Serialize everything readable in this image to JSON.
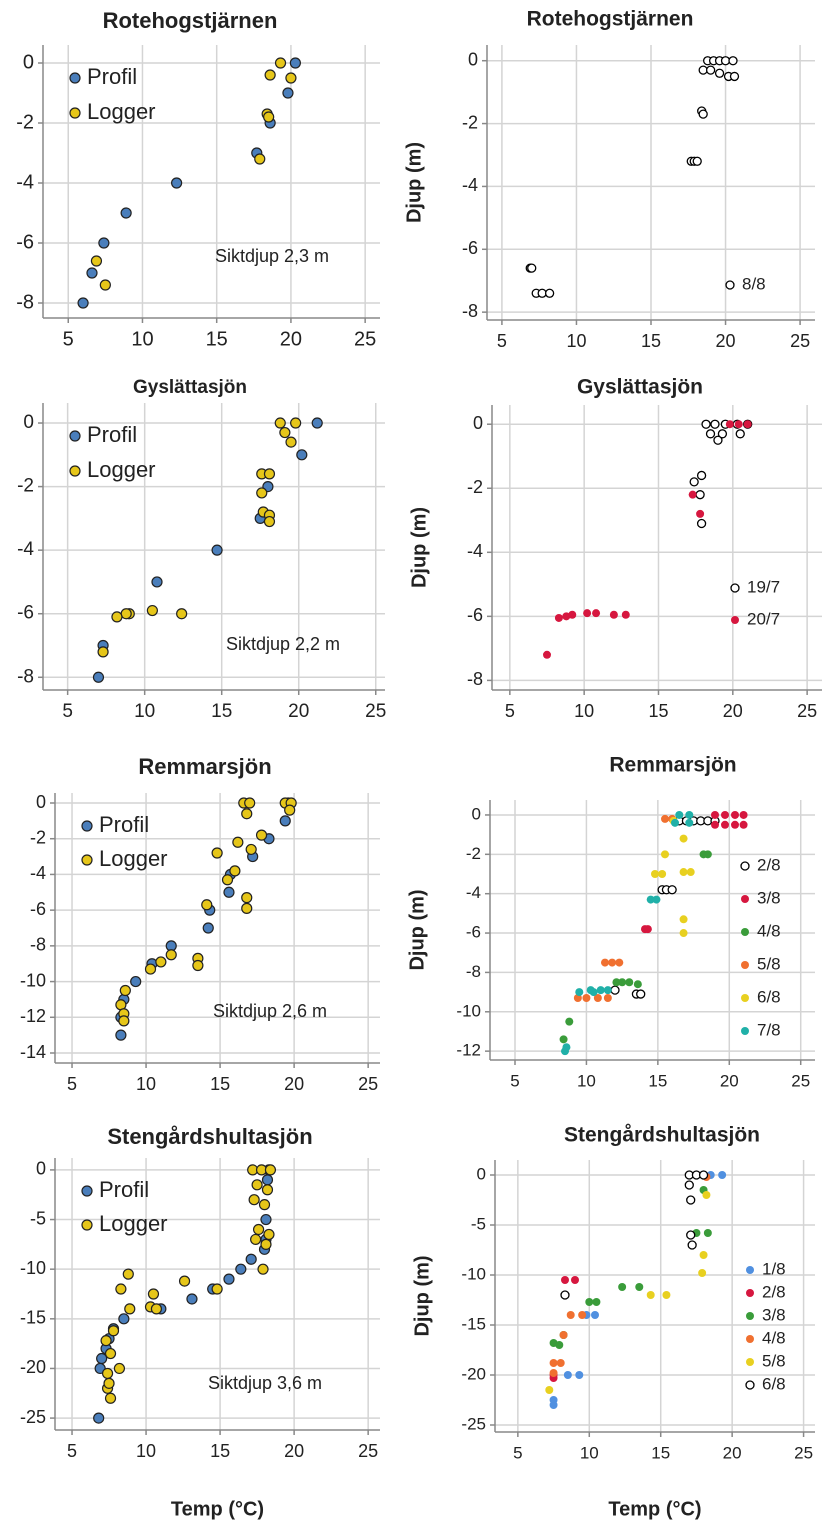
{
  "chart_data": [
    {
      "type": "scatter",
      "title": "Rotehogstjärnen",
      "annotation": "Siktdjup  2,3 m",
      "legend_loc": "upper left",
      "grid": true,
      "xlim": [
        3.3,
        26
      ],
      "ylim": [
        -8.5,
        0.6
      ],
      "xticks": [
        5,
        10,
        15,
        20,
        25
      ],
      "yticks": [
        0,
        -2,
        -4,
        -6,
        -8
      ],
      "series": [
        {
          "name": "Profil",
          "color": "#4a7ebb",
          "x": [
            20.3,
            19.8,
            18.6,
            17.7,
            12.3,
            8.9,
            7.4,
            6.6,
            6.0
          ],
          "y": [
            0,
            -1,
            -2,
            -3,
            -4,
            -5,
            -6,
            -7,
            -8
          ]
        },
        {
          "name": "Logger",
          "color": "#e6c619",
          "x": [
            19.3,
            20.0,
            18.6,
            18.4,
            18.5,
            17.9,
            6.9,
            7.5
          ],
          "y": [
            0,
            -0.5,
            -0.4,
            -1.7,
            -1.8,
            -3.2,
            -6.6,
            -7.4
          ]
        }
      ]
    },
    {
      "type": "scatter",
      "title": "Rotehogstjärnen",
      "y_label": "Djup (m)",
      "legend_loc": "lower right",
      "grid": true,
      "xlim": [
        4,
        26
      ],
      "ylim": [
        -8.25,
        0.5
      ],
      "xticks": [
        5,
        10,
        15,
        20,
        25
      ],
      "yticks": [
        0,
        -2,
        -4,
        -6,
        -8
      ],
      "series": [
        {
          "name": "8/8",
          "color": "#000000",
          "hollow": true,
          "x": [
            18.8,
            19.2,
            19.6,
            20.0,
            20.5,
            18.5,
            19.0,
            19.6,
            20.2,
            20.6,
            18.4,
            18.5,
            17.7,
            17.9,
            18.1,
            6.9,
            7.0,
            7.3,
            7.7,
            8.2
          ],
          "y": [
            0,
            0,
            0,
            0,
            0,
            -0.3,
            -0.3,
            -0.4,
            -0.5,
            -0.5,
            -1.6,
            -1.7,
            -3.2,
            -3.2,
            -3.2,
            -6.6,
            -6.6,
            -7.4,
            -7.4,
            -7.4
          ]
        }
      ]
    },
    {
      "type": "scatter",
      "title": "Gyslättasjön",
      "annotation": "Siktdjup  2,2 m",
      "legend_loc": "upper left",
      "grid": true,
      "xlim": [
        3.4,
        25.6
      ],
      "ylim": [
        -8.4,
        0.63
      ],
      "xticks": [
        5,
        10,
        15,
        20,
        25
      ],
      "yticks": [
        0,
        -2,
        -4,
        -6,
        -8
      ],
      "series": [
        {
          "name": "Profil",
          "color": "#4a7ebb",
          "x": [
            21.2,
            20.2,
            18.0,
            17.5,
            14.7,
            10.8,
            7.3,
            7.0
          ],
          "y": [
            0,
            -1,
            -2,
            -3,
            -4,
            -5,
            -7,
            -8
          ]
        },
        {
          "name": "Logger",
          "color": "#e6c619",
          "x": [
            18.8,
            19.8,
            19.1,
            19.5,
            17.6,
            18.1,
            17.6,
            17.7,
            18.1,
            18.1,
            9.0,
            8.8,
            8.2,
            10.5,
            12.4,
            7.3
          ],
          "y": [
            0,
            0,
            -0.3,
            -0.6,
            -1.6,
            -1.6,
            -2.2,
            -2.8,
            -2.9,
            -3.1,
            -6.0,
            -6.0,
            -6.1,
            -5.9,
            -6.0,
            -7.2
          ]
        }
      ]
    },
    {
      "type": "scatter",
      "title": "Gyslättasjön",
      "y_label": "Djup (m)",
      "legend_loc": "lower right",
      "grid": true,
      "xlim": [
        3.8,
        26
      ],
      "ylim": [
        -8.3,
        0.6
      ],
      "xticks": [
        5,
        10,
        15,
        20,
        25
      ],
      "yticks": [
        0,
        -2,
        -4,
        -6,
        -8
      ],
      "series": [
        {
          "name": "19/7",
          "color": "#000000",
          "hollow": true,
          "x": [
            18.2,
            18.8,
            19.5,
            20.3,
            21.0,
            18.5,
            19.3,
            20.5,
            19.0,
            17.9,
            17.4,
            17.8,
            17.9
          ],
          "y": [
            0,
            0,
            0,
            0,
            0,
            -0.3,
            -0.3,
            -0.3,
            -0.5,
            -1.6,
            -1.8,
            -2.2,
            -3.1
          ]
        },
        {
          "name": "20/7",
          "color": "#d6173f",
          "x": [
            19.8,
            20.4,
            21.0,
            17.3,
            17.8,
            7.5,
            8.3,
            8.8,
            9.2,
            10.2,
            10.8,
            12.0,
            12.8
          ],
          "y": [
            0,
            0,
            0,
            -2.2,
            -2.8,
            -7.2,
            -6.05,
            -6.0,
            -5.95,
            -5.9,
            -5.9,
            -5.95,
            -5.95
          ]
        }
      ]
    },
    {
      "type": "scatter",
      "title": "Remmarsjön",
      "annotation": "Siktdjup  2,6 m",
      "legend_loc": "upper left",
      "grid": true,
      "xlim": [
        3.85,
        25.8
      ],
      "ylim": [
        -14.56,
        0.56
      ],
      "xticks": [
        5,
        10,
        15,
        20,
        25
      ],
      "yticks": [
        0,
        -2,
        -4,
        -6,
        -8,
        -10,
        -12,
        -14
      ],
      "series": [
        {
          "name": "Profil",
          "color": "#4a7ebb",
          "x": [
            19.6,
            19.4,
            18.3,
            17.2,
            15.7,
            15.6,
            14.3,
            14.2,
            11.7,
            10.4,
            9.3,
            8.5,
            8.3,
            8.3
          ],
          "y": [
            0,
            -1,
            -2,
            -3,
            -4,
            -5,
            -6,
            -7,
            -8,
            -9,
            -10,
            -11,
            -12,
            -13
          ]
        },
        {
          "name": "Logger",
          "color": "#e6c619",
          "x": [
            16.6,
            17.0,
            19.4,
            19.8,
            16.8,
            19.7,
            17.8,
            16.2,
            17.1,
            14.8,
            16.0,
            15.5,
            16.8,
            16.8,
            14.1,
            11.7,
            11.0,
            10.3,
            13.5,
            13.5,
            8.6,
            8.3,
            8.5,
            8.5
          ],
          "y": [
            0,
            0,
            0,
            0,
            -0.6,
            -0.4,
            -1.8,
            -2.2,
            -2.6,
            -2.8,
            -3.8,
            -4.3,
            -5.3,
            -5.9,
            -5.7,
            -8.5,
            -8.9,
            -9.3,
            -8.7,
            -9.1,
            -10.5,
            -11.3,
            -11.8,
            -12.2
          ]
        }
      ]
    },
    {
      "type": "scatter",
      "title": "Remmarsjön",
      "y_label": "Djup (m)",
      "legend_loc": "center right",
      "grid": true,
      "xlim": [
        3.25,
        26
      ],
      "ylim": [
        -12.45,
        0.76
      ],
      "xticks": [
        5,
        10,
        15,
        20,
        25
      ],
      "yticks": [
        0,
        -2,
        -4,
        -6,
        -8,
        -10,
        -12
      ],
      "series": [
        {
          "name": "2/8",
          "color": "#000000",
          "hollow": true,
          "x": [
            16.5,
            17.0,
            17.5,
            18.0,
            18.5,
            19.0,
            15.3,
            15.6,
            16.0,
            13.5,
            13.8,
            12.0
          ],
          "y": [
            -0.3,
            -0.3,
            -0.3,
            -0.3,
            -0.3,
            -0.3,
            -3.8,
            -3.8,
            -3.8,
            -9.1,
            -9.1,
            -8.9
          ]
        },
        {
          "name": "3/8",
          "color": "#d6173f",
          "x": [
            19.0,
            19.7,
            20.4,
            21.0,
            19.0,
            19.7,
            20.4,
            21.0,
            14.1,
            14.3
          ],
          "y": [
            0,
            0,
            0,
            0,
            -0.5,
            -0.5,
            -0.5,
            -0.5,
            -5.8,
            -5.8
          ]
        },
        {
          "name": "4/8",
          "color": "#3a9c3a",
          "x": [
            18.2,
            18.5,
            12.1,
            12.5,
            13.0,
            13.6,
            8.8,
            8.4
          ],
          "y": [
            -2,
            -2,
            -8.5,
            -8.5,
            -8.5,
            -8.6,
            -10.5,
            -11.4
          ]
        },
        {
          "name": "5/8",
          "color": "#f07030",
          "x": [
            11.3,
            11.8,
            12.3,
            9.4,
            10.0,
            10.8,
            11.5,
            15.5,
            16.0
          ],
          "y": [
            -7.5,
            -7.5,
            -7.5,
            -9.3,
            -9.3,
            -9.3,
            -9.3,
            -0.2,
            -0.2
          ]
        },
        {
          "name": "6/8",
          "color": "#e8d020",
          "x": [
            16.8,
            15.5,
            16.8,
            17.3,
            14.8,
            15.3,
            16.8,
            16.8,
            16.1
          ],
          "y": [
            -1.2,
            -2.0,
            -2.9,
            -2.9,
            -3.0,
            -3.0,
            -5.3,
            -6.0,
            -0.3
          ]
        },
        {
          "name": "7/8",
          "color": "#20b0a8",
          "x": [
            16.5,
            17.2,
            16.2,
            17.2,
            14.5,
            14.9,
            10.3,
            11.0,
            11.5,
            9.5,
            10.5,
            8.6,
            8.5
          ],
          "y": [
            0,
            0,
            -0.4,
            -0.4,
            -4.3,
            -4.3,
            -8.9,
            -8.9,
            -8.9,
            -9.0,
            -9.0,
            -11.8,
            -12
          ]
        }
      ]
    },
    {
      "type": "scatter",
      "title": "Stengårdshultasjön",
      "annotation": "Siktdjup  3,6 m",
      "legend_loc": "upper left",
      "grid": true,
      "x_label": "Temp (°C)",
      "xlim": [
        3.85,
        25.8
      ],
      "ylim": [
        -26.2,
        1.2
      ],
      "xticks": [
        5,
        10,
        15,
        20,
        25
      ],
      "yticks": [
        0,
        -5,
        -10,
        -15,
        -20,
        -25
      ],
      "series": [
        {
          "name": "Profil",
          "color": "#4a7ebb",
          "x": [
            18.3,
            18.2,
            18.1,
            18.1,
            18.0,
            17.1,
            16.4,
            15.6,
            14.5,
            13.1,
            11.0,
            8.5,
            7.8,
            7.5,
            7.3,
            7.0,
            6.9,
            6.8
          ],
          "y": [
            0,
            -1,
            -5,
            -7,
            -8,
            -9,
            -10,
            -11,
            -12,
            -13,
            -14,
            -15,
            -16,
            -17,
            -18,
            -19,
            -20,
            -25
          ]
        },
        {
          "name": "Logger",
          "color": "#e6c619",
          "x": [
            17.2,
            17.8,
            18.4,
            17.5,
            18.2,
            17.3,
            18.0,
            17.6,
            18.3,
            17.4,
            18.1,
            17.9,
            8.8,
            8.3,
            10.5,
            12.6,
            14.8,
            8.9,
            10.3,
            10.7,
            7.6,
            8.2,
            7.4,
            7.4,
            7.6,
            7.3,
            7.8,
            7.5
          ],
          "y": [
            0,
            0,
            0,
            -1.5,
            -2,
            -3,
            -3.5,
            -6,
            -6.5,
            -7,
            -7.5,
            -10,
            -10.5,
            -12,
            -12.5,
            -11.2,
            -12,
            -14,
            -13.8,
            -14,
            -18.5,
            -20,
            -20.5,
            -22,
            -23,
            -17.2,
            -16.2,
            -21.5
          ]
        }
      ]
    },
    {
      "type": "scatter",
      "title": "Stengårdshultasjön",
      "y_label": "Djup (m)",
      "legend_loc": "center right",
      "grid": true,
      "x_label": "Temp (°C)",
      "xlim": [
        3.4,
        25.8
      ],
      "ylim": [
        -25.7,
        1.5
      ],
      "xticks": [
        5,
        10,
        15,
        20,
        25
      ],
      "yticks": [
        0,
        -5,
        -10,
        -15,
        -20,
        -25
      ],
      "series": [
        {
          "name": "1/8",
          "color": "#5090e0",
          "x": [
            18.5,
            19.3,
            9.8,
            10.4,
            8.5,
            9.3,
            7.5,
            7.5
          ],
          "y": [
            0,
            0,
            -14,
            -14,
            -20,
            -20,
            -22.5,
            -23
          ]
        },
        {
          "name": "2/8",
          "color": "#d6173f",
          "x": [
            18.0,
            8.3,
            9.0,
            7.5,
            7.5
          ],
          "y": [
            0,
            -10.5,
            -10.5,
            -20,
            -20.3
          ]
        },
        {
          "name": "3/8",
          "color": "#3a9c3a",
          "x": [
            18.0,
            17.5,
            18.3,
            12.3,
            13.5,
            10.0,
            10.5,
            7.5,
            7.9,
            8.2
          ],
          "y": [
            -1.5,
            -5.8,
            -5.8,
            -11.2,
            -11.2,
            -12.7,
            -12.7,
            -16.8,
            -17,
            -16
          ]
        },
        {
          "name": "4/8",
          "color": "#f07030",
          "x": [
            18.2,
            8.7,
            9.5,
            8.2,
            7.5,
            8.0,
            7.5
          ],
          "y": [
            -0.2,
            -14,
            -14,
            -16,
            -18.8,
            -18.8,
            -19.8
          ]
        },
        {
          "name": "5/8",
          "color": "#e8d020",
          "x": [
            18.2,
            18.0,
            17.9,
            14.3,
            15.4,
            7.2
          ],
          "y": [
            -2,
            -8,
            -9.8,
            -12,
            -12,
            -21.5
          ]
        },
        {
          "name": "6/8",
          "color": "#000000",
          "hollow": true,
          "x": [
            17.0,
            17.5,
            18.0,
            17.0,
            17.1,
            17.1,
            17.2,
            8.3
          ],
          "y": [
            0,
            0,
            0,
            -1,
            -2.5,
            -6,
            -7,
            -12
          ]
        }
      ]
    }
  ]
}
